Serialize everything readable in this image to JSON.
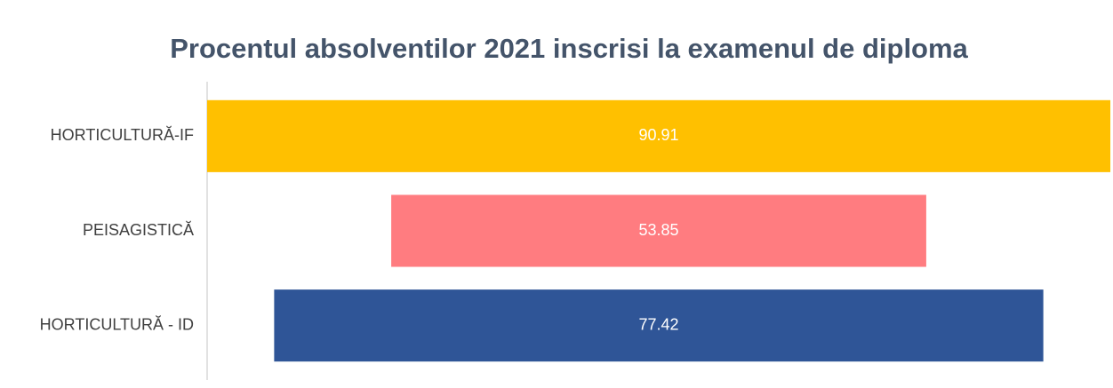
{
  "chart_data": {
    "type": "funnel",
    "title": "Procentul absolventilor 2021 inscrisi la examenul de diploma",
    "categories": [
      "HORTICULTURĂ-IF",
      "PEISAGISTICĂ",
      "HORTICULTURĂ - ID"
    ],
    "values": [
      90.91,
      53.85,
      77.42
    ],
    "colors": [
      "#ffc000",
      "#ff7c80",
      "#2f5597"
    ]
  }
}
